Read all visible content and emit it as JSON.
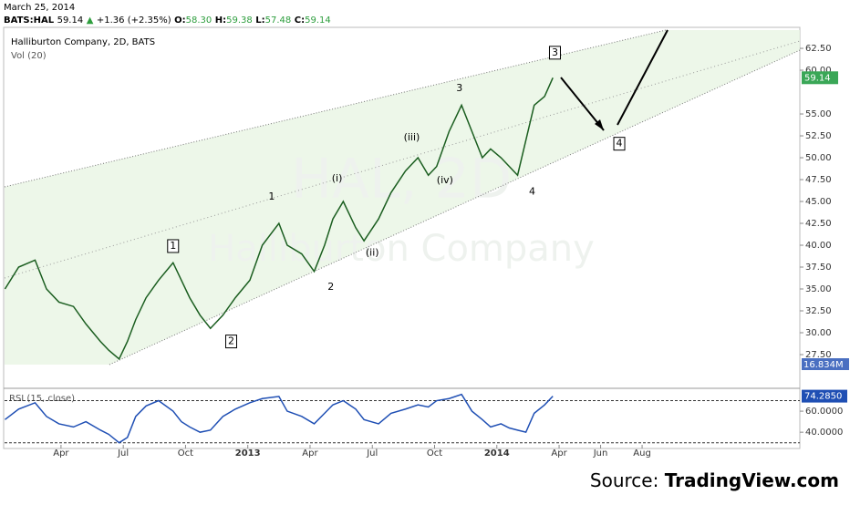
{
  "date": "March 25, 2014",
  "quote": {
    "symbol": "BATS:HAL",
    "last": "59.14",
    "change": "+1.36 (+2.35%)",
    "o_label": "O:",
    "o": "58.30",
    "h_label": "H:",
    "h": "59.38",
    "l_label": "L:",
    "l": "57.48",
    "c_label": "C:",
    "c": "59.14"
  },
  "source": {
    "prefix": "Source: ",
    "name": "TradingView.com"
  },
  "chart_data": [
    {
      "type": "line",
      "title": "Halliburton Company, 2D, BATS",
      "subtitle": "Vol (20)",
      "watermark": [
        "HAL, 2D",
        "Halliburton Company"
      ],
      "color": "#1b5e20",
      "x": [
        0.3,
        0.96,
        1.75,
        2.3,
        2.9,
        3.6,
        4.2,
        4.9,
        5.3,
        5.8,
        6.2,
        6.6,
        7.1,
        7.7,
        8.4,
        8.8,
        9.2,
        9.7,
        10.2,
        10.8,
        11.4,
        12.1,
        12.7,
        13.5,
        13.9,
        14.6,
        15.2,
        15.7,
        16.1,
        16.6,
        17.2,
        17.6,
        18.3,
        18.9,
        19.6,
        20.2,
        20.7,
        21.1,
        21.7,
        22.3,
        22.8,
        23.3,
        23.7,
        24.2,
        24.6,
        25.0,
        25.4,
        25.8,
        26.3,
        26.7
      ],
      "values": [
        35,
        37.5,
        38.3,
        35,
        33.5,
        33,
        31,
        29,
        28,
        27,
        29,
        31.5,
        34,
        36,
        38,
        36,
        34,
        32,
        30.5,
        32,
        34,
        36,
        40,
        42.5,
        40,
        39,
        37,
        40,
        43,
        45,
        42,
        40.5,
        43,
        46,
        48.5,
        50,
        48,
        49,
        53,
        56,
        53,
        50,
        51,
        50,
        49,
        48,
        52,
        56,
        57,
        59.14
      ],
      "last_label": "59.14",
      "volume_label": "16.834M",
      "xlim": [
        0.28,
        38.6
      ],
      "xticks": [
        {
          "value": 3,
          "label": "Apr"
        },
        {
          "value": 6,
          "label": "Jul"
        },
        {
          "value": 9,
          "label": "Oct"
        },
        {
          "value": 12,
          "label": "2013"
        },
        {
          "value": 15,
          "label": "Apr"
        },
        {
          "value": 18,
          "label": "Jul"
        },
        {
          "value": 21,
          "label": "Oct"
        },
        {
          "value": 24,
          "label": "2014"
        },
        {
          "value": 27,
          "label": "Apr"
        },
        {
          "value": 29,
          "label": "Jun"
        },
        {
          "value": 31,
          "label": "Aug"
        }
      ],
      "ylim": [
        23.75,
        64.9
      ],
      "yticks": [
        {
          "value": 27.5,
          "label": "27.50"
        },
        {
          "value": 30,
          "label": "30.00"
        },
        {
          "value": 32.5,
          "label": "32.50"
        },
        {
          "value": 35,
          "label": "35.00"
        },
        {
          "value": 37.5,
          "label": "37.50"
        },
        {
          "value": 40,
          "label": "40.00"
        },
        {
          "value": 42.5,
          "label": "42.50"
        },
        {
          "value": 45,
          "label": "45.00"
        },
        {
          "value": 47.5,
          "label": "47.50"
        },
        {
          "value": 50,
          "label": "50.00"
        },
        {
          "value": 52.5,
          "label": "52.50"
        },
        {
          "value": 55,
          "label": "55.00"
        },
        {
          "value": 60,
          "label": "60.00"
        },
        {
          "value": 62.5,
          "label": "62.50"
        }
      ],
      "annotations": [
        {
          "text": "1",
          "x": 8.4,
          "y": 39.9,
          "boxed": true
        },
        {
          "text": "2",
          "x": 11.2,
          "y": 29.0,
          "boxed": true
        },
        {
          "text": "3",
          "x": 26.8,
          "y": 62.0,
          "boxed": true
        },
        {
          "text": "4",
          "x": 29.9,
          "y": 51.6,
          "boxed": true
        },
        {
          "text": "1",
          "x": 13.15,
          "y": 45.5,
          "boxed": false
        },
        {
          "text": "2",
          "x": 16.0,
          "y": 35.2,
          "boxed": false
        },
        {
          "text": "3",
          "x": 22.2,
          "y": 57.9,
          "boxed": false
        },
        {
          "text": "4",
          "x": 25.7,
          "y": 46.1,
          "boxed": false
        },
        {
          "text": "(i)",
          "x": 16.3,
          "y": 47.6,
          "boxed": false
        },
        {
          "text": "(ii)",
          "x": 18.0,
          "y": 39.1,
          "boxed": false
        },
        {
          "text": "(iii)",
          "x": 19.9,
          "y": 52.3,
          "boxed": false
        },
        {
          "text": "(iv)",
          "x": 21.5,
          "y": 47.4,
          "boxed": false
        }
      ]
    },
    {
      "type": "line",
      "title": "RSI (15, close)",
      "color": "#1f4fb4",
      "last_label": "74.2850",
      "values": [
        52,
        62,
        68,
        55,
        48,
        45,
        50,
        42,
        38,
        30,
        35,
        55,
        65,
        70,
        60,
        50,
        45,
        40,
        42,
        55,
        62,
        68,
        72,
        74,
        60,
        55,
        48,
        58,
        66,
        70,
        62,
        52,
        48,
        58,
        62,
        66,
        64,
        70,
        72,
        76,
        60,
        52,
        45,
        48,
        44,
        42,
        40,
        58,
        66,
        74.285
      ],
      "ylim": [
        28,
        80
      ],
      "levels": [
        70,
        30
      ],
      "yticks": [
        {
          "value": 40,
          "label": "40.0000"
        },
        {
          "value": 60,
          "label": "60.0000"
        }
      ]
    }
  ]
}
